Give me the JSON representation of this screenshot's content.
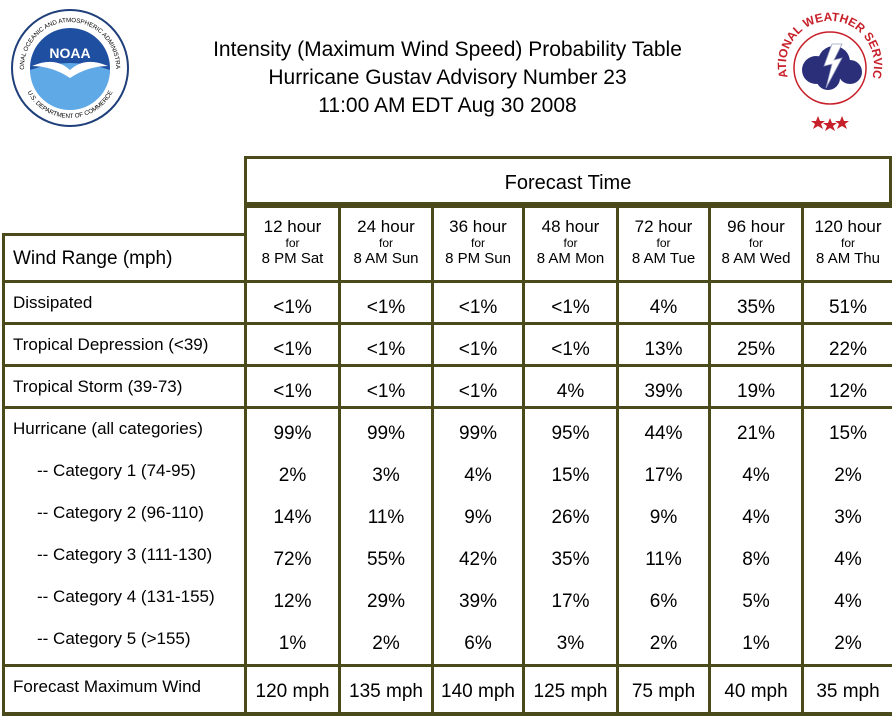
{
  "header": {
    "title_line1": "Intensity (Maximum Wind Speed) Probability Table",
    "title_line2": "Hurricane Gustav Advisory Number 23",
    "title_line3": "11:00 AM EDT Aug 30 2008",
    "noaa_logo_text": "NOAA",
    "noaa_ring_top": "NATIONAL OCEANIC AND ATMOSPHERIC ADMINISTRATION",
    "noaa_ring_bottom": "U.S. DEPARTMENT OF COMMERCE",
    "nws_ring": "NATIONAL WEATHER SERVICE"
  },
  "table": {
    "forecast_time_label": "Forecast Time",
    "wind_range_label": "Wind Range (mph)",
    "columns": [
      {
        "hours": "12 hour",
        "for": "for",
        "when": "8 PM Sat"
      },
      {
        "hours": "24 hour",
        "for": "for",
        "when": "8 AM Sun"
      },
      {
        "hours": "36 hour",
        "for": "for",
        "when": "8 PM Sun"
      },
      {
        "hours": "48 hour",
        "for": "for",
        "when": "8 AM Mon"
      },
      {
        "hours": "72 hour",
        "for": "for",
        "when": "8 AM Tue"
      },
      {
        "hours": "96 hour",
        "for": "for",
        "when": "8 AM Wed"
      },
      {
        "hours": "120 hour",
        "for": "for",
        "when": "8 AM Thu"
      }
    ],
    "rows": [
      {
        "label": "Dissipated",
        "values": [
          "<1%",
          "<1%",
          "<1%",
          "<1%",
          "4%",
          "35%",
          "51%"
        ]
      },
      {
        "label": "Tropical Depression (<39)",
        "values": [
          "<1%",
          "<1%",
          "<1%",
          "<1%",
          "13%",
          "25%",
          "22%"
        ]
      },
      {
        "label": "Tropical Storm (39-73)",
        "values": [
          "<1%",
          "<1%",
          "<1%",
          "4%",
          "39%",
          "19%",
          "12%"
        ]
      },
      {
        "label": "Hurricane (all categories)",
        "values": [
          "99%",
          "99%",
          "99%",
          "95%",
          "44%",
          "21%",
          "15%"
        ]
      },
      {
        "label": "-- Category 1 (74-95)",
        "values": [
          "2%",
          "3%",
          "4%",
          "15%",
          "17%",
          "4%",
          "2%"
        ]
      },
      {
        "label": "-- Category 2 (96-110)",
        "values": [
          "14%",
          "11%",
          "9%",
          "26%",
          "9%",
          "4%",
          "3%"
        ]
      },
      {
        "label": "-- Category 3 (111-130)",
        "values": [
          "72%",
          "55%",
          "42%",
          "35%",
          "11%",
          "8%",
          "4%"
        ]
      },
      {
        "label": "-- Category 4 (131-155)",
        "values": [
          "12%",
          "29%",
          "39%",
          "17%",
          "6%",
          "5%",
          "4%"
        ]
      },
      {
        "label": "-- Category 5 (>155)",
        "values": [
          "1%",
          "2%",
          "6%",
          "3%",
          "2%",
          "1%",
          "2%"
        ]
      },
      {
        "label": "Forecast Maximum Wind",
        "values": [
          "120 mph",
          "135 mph",
          "140 mph",
          "125 mph",
          "75 mph",
          "40 mph",
          "35 mph"
        ]
      }
    ]
  }
}
